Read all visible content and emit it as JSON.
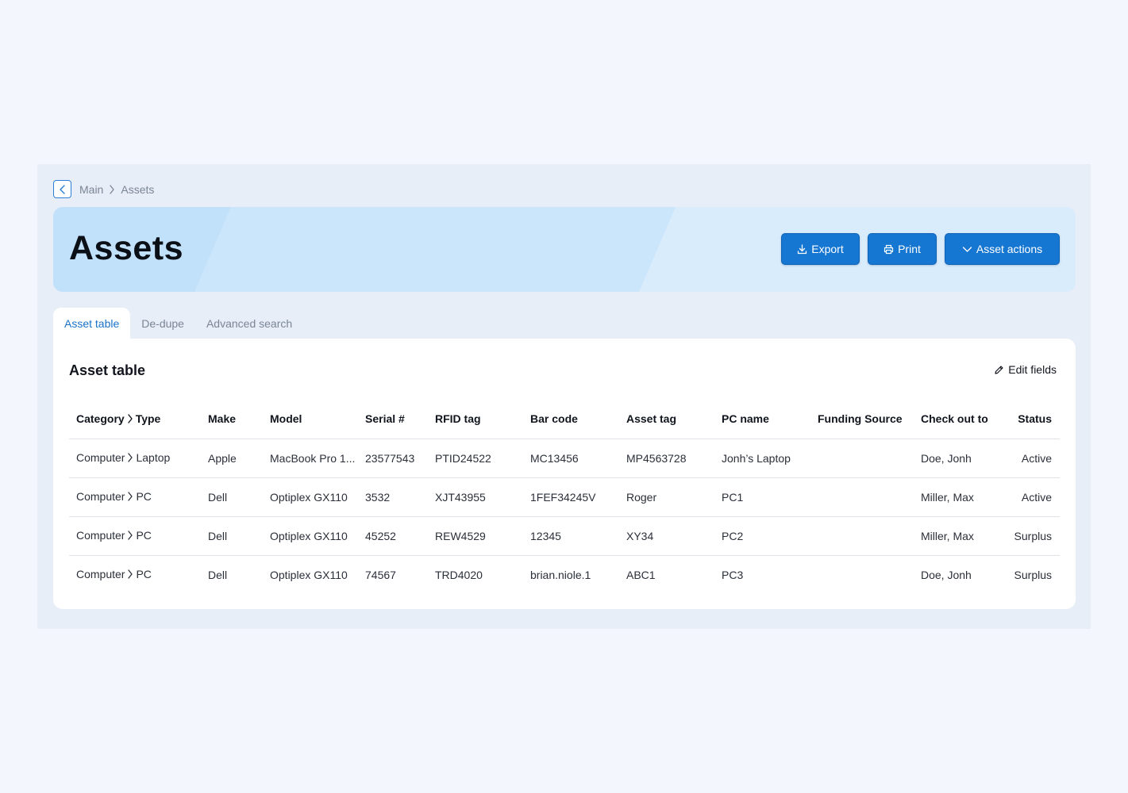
{
  "breadcrumb": {
    "items": [
      "Main",
      "Assets"
    ]
  },
  "header": {
    "title": "Assets",
    "buttons": {
      "export": "Export",
      "print": "Print",
      "asset_actions": "Asset actions"
    }
  },
  "tabs": [
    {
      "label": "Asset table",
      "active": true
    },
    {
      "label": "De-dupe",
      "active": false
    },
    {
      "label": "Advanced search",
      "active": false
    }
  ],
  "panel": {
    "title": "Asset table",
    "edit_fields": "Edit fields"
  },
  "table": {
    "columns": [
      "Category",
      "Type",
      "Make",
      "Model",
      "Serial #",
      "RFID tag",
      "Bar code",
      "Asset tag",
      "PC name",
      "Funding Source",
      "Check out to",
      "Status"
    ],
    "rows": [
      {
        "category": "Computer",
        "type": "Laptop",
        "make": "Apple",
        "model": "MacBook Pro 1...",
        "serial": "23577543",
        "rfid": "PTID24522",
        "barcode": "MC13456",
        "asset_tag": "MP4563728",
        "pc_name": "Jonh’s Laptop",
        "funding": "",
        "checkout": "Doe, Jonh",
        "status": "Active"
      },
      {
        "category": "Computer",
        "type": "PC",
        "make": "Dell",
        "model": "Optiplex GX110",
        "serial": "3532",
        "rfid": "XJT43955",
        "barcode": "1FEF34245V",
        "asset_tag": "Roger",
        "pc_name": "PC1",
        "funding": "",
        "checkout": "Miller, Max",
        "status": "Active"
      },
      {
        "category": "Computer",
        "type": "PC",
        "make": "Dell",
        "model": "Optiplex GX110",
        "serial": "45252",
        "rfid": "REW4529",
        "barcode": "12345",
        "asset_tag": "XY34",
        "pc_name": "PC2",
        "funding": "",
        "checkout": "Miller, Max",
        "status": "Surplus"
      },
      {
        "category": "Computer",
        "type": "PC",
        "make": "Dell",
        "model": "Optiplex GX110",
        "serial": "74567",
        "rfid": "TRD4020",
        "barcode": "brian.niole.1",
        "asset_tag": "ABC1",
        "pc_name": "PC3",
        "funding": "",
        "checkout": "Doe, Jonh",
        "status": "Surplus"
      }
    ]
  },
  "colors": {
    "accent": "#1677d2",
    "hero_bg": "#d4e8fb",
    "frame_bg": "#e7eef8",
    "page_bg": "#f3f7fd"
  },
  "icons": {
    "back": "chevron-left-icon",
    "crumb_separator": "chevron-right-icon",
    "export": "download-icon",
    "print": "printer-icon",
    "asset_actions": "chevron-down-icon",
    "edit_fields": "pencil-icon",
    "category_separator": "chevron-right-icon"
  }
}
